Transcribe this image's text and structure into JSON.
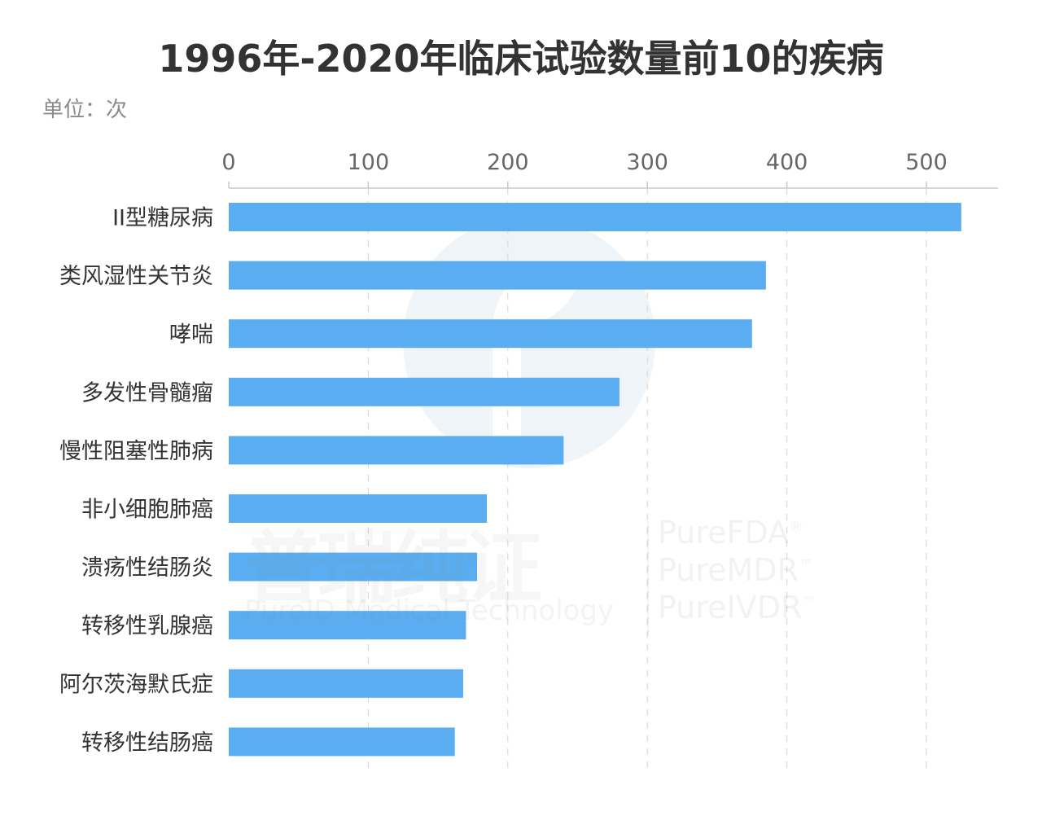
{
  "chart_data": {
    "type": "bar",
    "orientation": "horizontal",
    "title": "1996年-2020年临床试验数量前10的疾病",
    "unit_label": "单位：次",
    "categories": [
      "II型糖尿病",
      "类风湿性关节炎",
      "哮喘",
      "多发性骨髓瘤",
      "慢性阻塞性肺病",
      "非小细胞肺癌",
      "溃疡性结肠炎",
      "转移性乳腺癌",
      "阿尔茨海默氏症",
      "转移性结肠癌"
    ],
    "values": [
      525,
      385,
      375,
      280,
      240,
      185,
      178,
      170,
      168,
      162
    ],
    "xlim": [
      0,
      550
    ],
    "xticks": [
      0,
      100,
      200,
      300,
      400,
      500
    ],
    "axis_position": "top",
    "grid": "vertical-dashed",
    "bar_color": "#5aadf0"
  },
  "watermark": {
    "chinese": "普瑞纯证",
    "english": "PureID Medical Technology",
    "brands": [
      "PureFDA",
      "PureMDR",
      "PureIVDR"
    ],
    "brand_marks": [
      "®",
      "™",
      "™"
    ]
  }
}
